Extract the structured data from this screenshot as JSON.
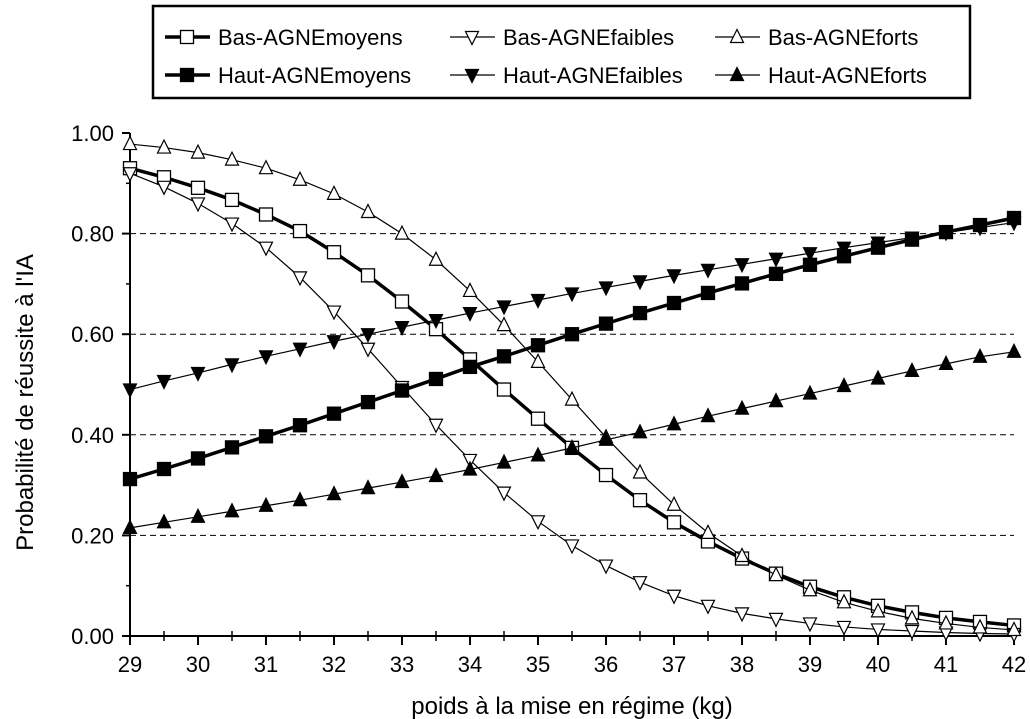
{
  "chart_data": {
    "type": "line",
    "title": "",
    "xlabel": "poids à la mise en régime (kg)",
    "ylabel": "Probabilité de réussite à l'IA",
    "xlim": [
      29,
      42
    ],
    "ylim": [
      0,
      1
    ],
    "x_ticks": [
      "29",
      "30",
      "31",
      "32",
      "33",
      "34",
      "35",
      "36",
      "37",
      "38",
      "39",
      "40",
      "41",
      "42"
    ],
    "y_ticks": [
      "0.00",
      "0.20",
      "0.40",
      "0.60",
      "0.80",
      "1.00"
    ],
    "grid": "horizontal dashed",
    "legend_position": "top",
    "x": [
      29,
      29.5,
      30,
      30.5,
      31,
      31.5,
      32,
      32.5,
      33,
      33.5,
      34,
      34.5,
      35,
      35.5,
      36,
      36.5,
      37,
      37.5,
      38,
      38.5,
      39,
      39.5,
      40,
      40.5,
      41,
      41.5,
      42
    ],
    "series": [
      {
        "name": "Bas-AGNEmoyens",
        "marker": "square-open",
        "line": "thick",
        "values": [
          0.93,
          0.912,
          0.891,
          0.867,
          0.838,
          0.805,
          0.763,
          0.717,
          0.665,
          0.61,
          0.55,
          0.49,
          0.432,
          0.374,
          0.32,
          0.27,
          0.226,
          0.188,
          0.154,
          0.124,
          0.098,
          0.077,
          0.06,
          0.047,
          0.036,
          0.028,
          0.021
        ]
      },
      {
        "name": "Bas-AGNEfaibles",
        "marker": "triangle-down-open",
        "line": "thin",
        "values": [
          0.92,
          0.893,
          0.86,
          0.82,
          0.772,
          0.713,
          0.645,
          0.571,
          0.495,
          0.42,
          0.35,
          0.285,
          0.228,
          0.18,
          0.14,
          0.107,
          0.08,
          0.06,
          0.045,
          0.034,
          0.025,
          0.018,
          0.013,
          0.01,
          0.007,
          0.005,
          0.004
        ]
      },
      {
        "name": "Bas-AGNEforts",
        "marker": "triangle-up-open",
        "line": "thin",
        "values": [
          0.978,
          0.971,
          0.961,
          0.947,
          0.93,
          0.907,
          0.879,
          0.843,
          0.8,
          0.748,
          0.686,
          0.618,
          0.545,
          0.47,
          0.395,
          0.325,
          0.261,
          0.205,
          0.159,
          0.121,
          0.091,
          0.067,
          0.049,
          0.035,
          0.025,
          0.017,
          0.012
        ]
      },
      {
        "name": "Haut-AGNEmoyens",
        "marker": "square-filled",
        "line": "thick",
        "values": [
          0.312,
          0.332,
          0.353,
          0.375,
          0.397,
          0.419,
          0.442,
          0.465,
          0.488,
          0.511,
          0.535,
          0.556,
          0.578,
          0.6,
          0.621,
          0.642,
          0.662,
          0.682,
          0.701,
          0.72,
          0.738,
          0.755,
          0.772,
          0.788,
          0.803,
          0.817,
          0.831
        ]
      },
      {
        "name": "Haut-AGNEfaibles",
        "marker": "triangle-down-filled",
        "line": "thin",
        "values": [
          0.49,
          0.507,
          0.523,
          0.54,
          0.556,
          0.571,
          0.586,
          0.6,
          0.614,
          0.628,
          0.642,
          0.655,
          0.668,
          0.681,
          0.693,
          0.705,
          0.717,
          0.728,
          0.739,
          0.75,
          0.761,
          0.772,
          0.782,
          0.792,
          0.802,
          0.812,
          0.822
        ]
      },
      {
        "name": "Haut-AGNEforts",
        "marker": "triangle-up-filled",
        "line": "thin",
        "values": [
          0.215,
          0.226,
          0.237,
          0.248,
          0.259,
          0.27,
          0.282,
          0.294,
          0.306,
          0.318,
          0.331,
          0.345,
          0.359,
          0.374,
          0.39,
          0.405,
          0.421,
          0.437,
          0.452,
          0.467,
          0.482,
          0.497,
          0.512,
          0.527,
          0.541,
          0.555,
          0.565
        ]
      }
    ]
  }
}
